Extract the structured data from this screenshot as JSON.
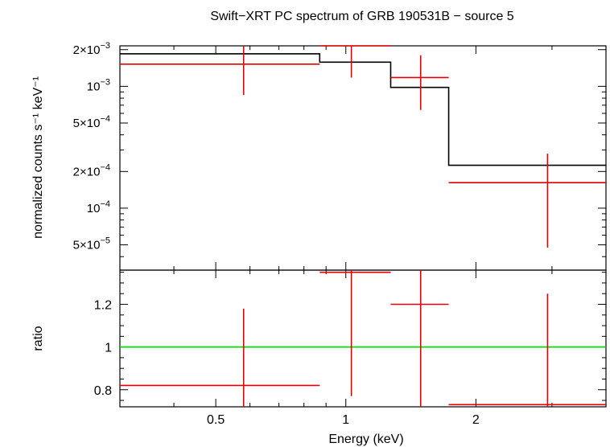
{
  "chart_data": [
    {
      "type": "line",
      "title": "Swift−XRT PC spectrum of GRB 190531B − source 5",
      "ylabel": "normalized counts s⁻¹ keV⁻¹",
      "yscale": "log",
      "xscale": "log",
      "xlim": [
        0.3,
        4.0
      ],
      "ylim": [
        3.1e-05,
        0.00215
      ],
      "y_ticks": [
        {
          "value": 0.002,
          "mant": "2×10",
          "exp": "−3"
        },
        {
          "value": 0.001,
          "mant": "10",
          "exp": "−3"
        },
        {
          "value": 0.0005,
          "mant": "5×10",
          "exp": "−4"
        },
        {
          "value": 0.0002,
          "mant": "2×10",
          "exp": "−4"
        },
        {
          "value": 0.0001,
          "mant": "10",
          "exp": "−4"
        },
        {
          "value": 5e-05,
          "mant": "5×10",
          "exp": "−5"
        }
      ],
      "model": {
        "color": "#000000",
        "steps": [
          {
            "x0": 0.3,
            "x1": 0.87,
            "y": 0.00185
          },
          {
            "x0": 0.87,
            "x1": 1.27,
            "y": 0.00158
          },
          {
            "x0": 1.27,
            "x1": 1.73,
            "y": 0.00098
          },
          {
            "x0": 1.73,
            "x1": 4.0,
            "y": 0.000225
          }
        ]
      },
      "data": {
        "color": "#e00000",
        "points": [
          {
            "x": 0.58,
            "xlo": 0.3,
            "xhi": 0.87,
            "y": 0.00152,
            "ylo": 0.00085,
            "yhi": 0.00215
          },
          {
            "x": 1.03,
            "xlo": 0.87,
            "xhi": 1.27,
            "y": 0.00215,
            "ylo": 0.00118,
            "yhi": 0.00215
          },
          {
            "x": 1.49,
            "xlo": 1.27,
            "xhi": 1.73,
            "y": 0.00118,
            "ylo": 0.00064,
            "yhi": 0.0018
          },
          {
            "x": 2.93,
            "xlo": 1.73,
            "xhi": 4.0,
            "y": 0.000162,
            "ylo": 4.75e-05,
            "yhi": 0.00028
          }
        ]
      }
    },
    {
      "type": "scatter",
      "xlabel": "Energy (keV)",
      "ylabel": "ratio",
      "xscale": "log",
      "xlim": [
        0.3,
        4.0
      ],
      "ylim": [
        0.72,
        1.36
      ],
      "x_ticks": [
        {
          "value": 0.5,
          "label": "0.5"
        },
        {
          "value": 1,
          "label": "1"
        },
        {
          "value": 2,
          "label": "2"
        }
      ],
      "y_ticks": [
        {
          "value": 1.2,
          "label": "1.2"
        },
        {
          "value": 1,
          "label": "1"
        },
        {
          "value": 0.8,
          "label": "0.8"
        }
      ],
      "reference_line": {
        "y": 1.0,
        "color": "#00dd00"
      },
      "data": {
        "color": "#e00000",
        "points": [
          {
            "x": 0.58,
            "xlo": 0.3,
            "xhi": 0.87,
            "y": 0.82,
            "ylo": 0.72,
            "yhi": 1.18
          },
          {
            "x": 1.03,
            "xlo": 0.87,
            "xhi": 1.27,
            "y": 1.35,
            "ylo": 0.77,
            "yhi": 1.36
          },
          {
            "x": 1.49,
            "xlo": 1.27,
            "xhi": 1.73,
            "y": 1.2,
            "ylo": 0.72,
            "yhi": 1.36
          },
          {
            "x": 2.93,
            "xlo": 1.73,
            "xhi": 4.0,
            "y": 0.73,
            "ylo": 0.72,
            "yhi": 1.25
          }
        ]
      }
    }
  ]
}
